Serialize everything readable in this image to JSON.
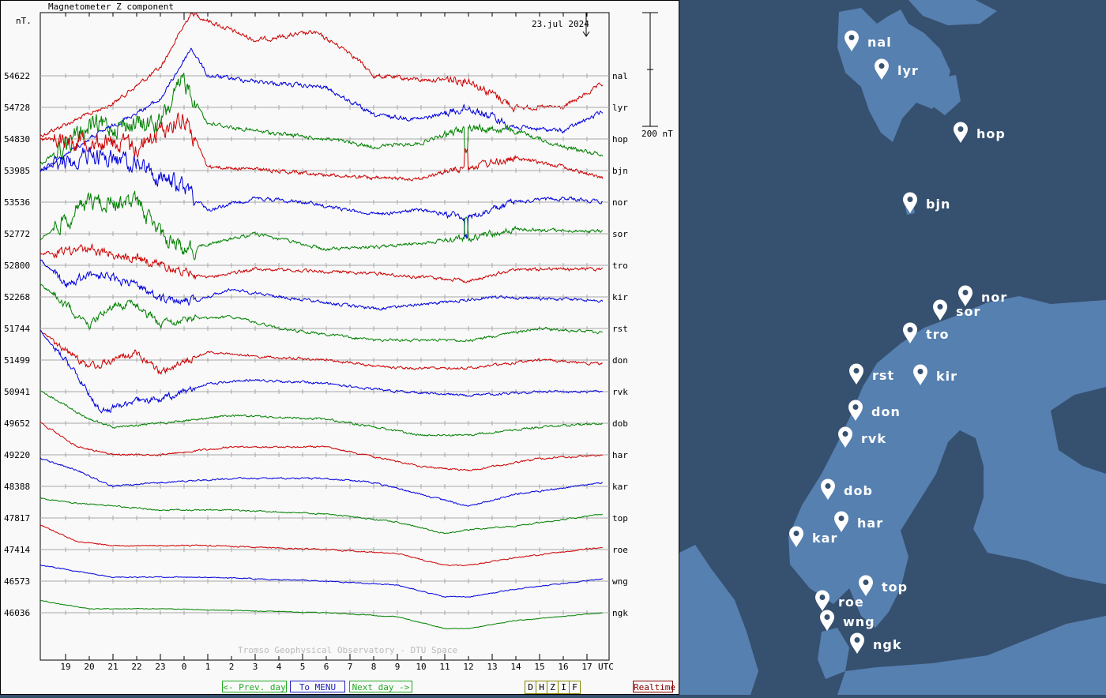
{
  "title": "Magnetometer Z component",
  "unit_label": "nT.",
  "date_label": "23.jul 2024",
  "scale_label": "200 nT",
  "credit": "Tromso Geophysical Observatory - DTU Space",
  "time_axis": {
    "ticks": [
      "19",
      "20",
      "21",
      "22",
      "23",
      "0",
      "1",
      "2",
      "3",
      "4",
      "5",
      "6",
      "7",
      "8",
      "9",
      "10",
      "11",
      "12",
      "13",
      "14",
      "15",
      "16",
      "17"
    ],
    "unit": "UTC"
  },
  "stations": [
    {
      "code": "nal",
      "baseline": "54622",
      "color": "#cc0000"
    },
    {
      "code": "lyr",
      "baseline": "54728",
      "color": "#0000dd"
    },
    {
      "code": "hop",
      "baseline": "54830",
      "color": "#008000"
    },
    {
      "code": "bjn",
      "baseline": "53985",
      "color": "#cc0000"
    },
    {
      "code": "nor",
      "baseline": "53536",
      "color": "#0000dd"
    },
    {
      "code": "sor",
      "baseline": "52772",
      "color": "#008000"
    },
    {
      "code": "tro",
      "baseline": "52800",
      "color": "#cc0000"
    },
    {
      "code": "kir",
      "baseline": "52268",
      "color": "#0000dd"
    },
    {
      "code": "rst",
      "baseline": "51744",
      "color": "#008000"
    },
    {
      "code": "don",
      "baseline": "51499",
      "color": "#cc0000"
    },
    {
      "code": "rvk",
      "baseline": "50941",
      "color": "#0000dd"
    },
    {
      "code": "dob",
      "baseline": "49652",
      "color": "#008000"
    },
    {
      "code": "har",
      "baseline": "49220",
      "color": "#cc0000"
    },
    {
      "code": "kar",
      "baseline": "48388",
      "color": "#0000dd"
    },
    {
      "code": "top",
      "baseline": "47817",
      "color": "#008000"
    },
    {
      "code": "roe",
      "baseline": "47414",
      "color": "#cc0000"
    },
    {
      "code": "wng",
      "baseline": "46573",
      "color": "#0000dd"
    },
    {
      "code": "ngk",
      "baseline": "46036",
      "color": "#008000"
    }
  ],
  "buttons": {
    "prev": "<- Prev. day",
    "menu": "To MENU",
    "next": "Next day ->",
    "components": [
      "D",
      "H",
      "Z",
      "I",
      "F"
    ],
    "realtime": "Realtime"
  },
  "map": {
    "sea_color": "#36506f",
    "land_color": "#5680b0",
    "markers": [
      "nal",
      "lyr",
      "hop",
      "bjn",
      "nor",
      "sor",
      "tro",
      "rst",
      "kir",
      "don",
      "rvk",
      "dob",
      "har",
      "kar",
      "top",
      "roe",
      "wng",
      "ngk"
    ]
  }
}
